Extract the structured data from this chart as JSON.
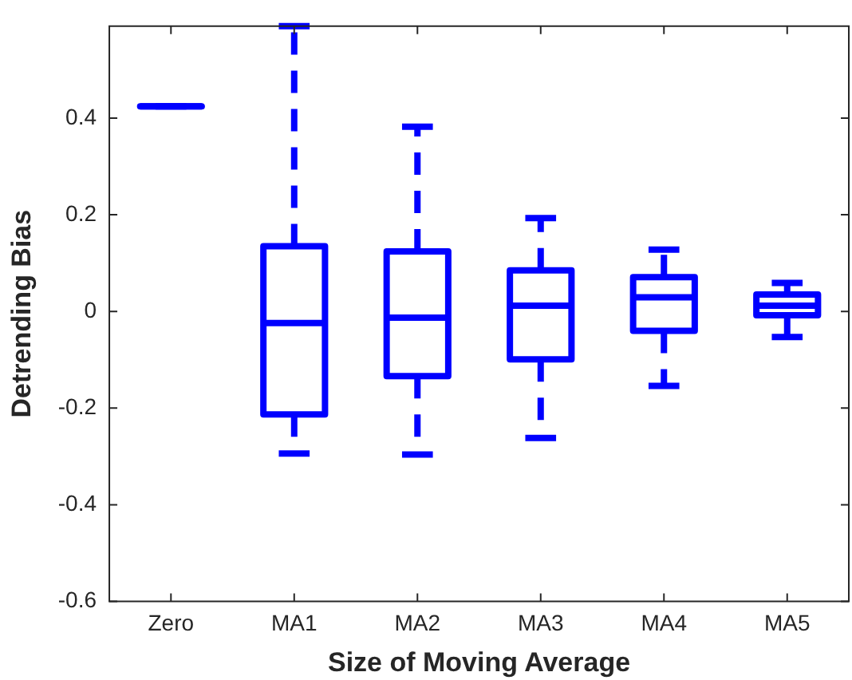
{
  "chart_data": {
    "type": "box",
    "xlabel": "Size of Moving Average",
    "ylabel": "Detrending Bias",
    "categories": [
      "Zero",
      "MA1",
      "MA2",
      "MA3",
      "MA4",
      "MA5"
    ],
    "color": "#0000ff",
    "line_style": "dashed",
    "grid": false,
    "legend": false,
    "boxes": [
      {
        "low": 0.424,
        "q1": 0.424,
        "median": 0.424,
        "q3": 0.424,
        "high": 0.424
      },
      {
        "low": -0.294,
        "q1": -0.213,
        "median": -0.024,
        "q3": 0.135,
        "high": 0.59
      },
      {
        "low": -0.296,
        "q1": -0.134,
        "median": -0.013,
        "q3": 0.124,
        "high": 0.382
      },
      {
        "low": -0.262,
        "q1": -0.099,
        "median": 0.012,
        "q3": 0.085,
        "high": 0.193
      },
      {
        "low": -0.154,
        "q1": -0.04,
        "median": 0.029,
        "q3": 0.071,
        "high": 0.128
      },
      {
        "low": -0.053,
        "q1": -0.008,
        "median": 0.012,
        "q3": 0.035,
        "high": 0.059
      }
    ],
    "ylim": [
      -0.6,
      0.59
    ],
    "yticks": [
      -0.6,
      -0.4,
      -0.2,
      0,
      0.2,
      0.4
    ]
  }
}
